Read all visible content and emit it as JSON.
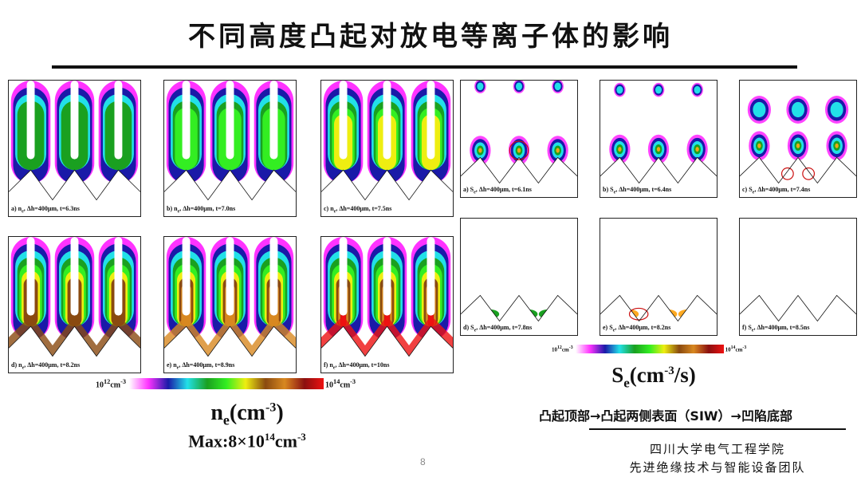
{
  "title": "不同高度凸起对放电等离子体的影响",
  "colormap": [
    "#ffffff",
    "#ff33ff",
    "#1a1aa8",
    "#22e0e8",
    "#1aa020",
    "#33ee22",
    "#eeee11",
    "#8a4a10",
    "#d88820",
    "#8b1010",
    "#ee1111"
  ],
  "ne_panels": [
    {
      "prefix": "a) n",
      "sub": "e",
      "suffix": ", Δh=400μm, t=6.3ns"
    },
    {
      "prefix": "b) n",
      "sub": "e",
      "suffix": ", Δh=400μm, t=7.0ns"
    },
    {
      "prefix": "c) n",
      "sub": "e",
      "suffix": ", Δh=400μm, t=7.5ns"
    },
    {
      "prefix": "d) n",
      "sub": "e",
      "suffix": ", Δh=400μm, t=8.2ns"
    },
    {
      "prefix": "e) n",
      "sub": "e",
      "suffix": ", Δh=400μm, t=8.9ns"
    },
    {
      "prefix": "f) n",
      "sub": "e",
      "suffix": ", Δh=400μm, t=10ns"
    }
  ],
  "se_panels": [
    {
      "prefix": "a) S",
      "sub": "e",
      "suffix": ", Δh=400μm, t=6.1ns"
    },
    {
      "prefix": "b) S",
      "sub": "e",
      "suffix": ", Δh=400μm, t=6.4ns"
    },
    {
      "prefix": "c) S",
      "sub": "e",
      "suffix": ", Δh=400μm, t=7.4ns"
    },
    {
      "prefix": "d) S",
      "sub": "e",
      "suffix": ", Δh=400μm, t=7.8ns"
    },
    {
      "prefix": "e) S",
      "sub": "e",
      "suffix": ", Δh=400μm, t=8.2ns"
    },
    {
      "prefix": "f) S",
      "sub": "e",
      "suffix": ", Δh=400μm, t=8.5ns"
    }
  ],
  "ne_colorbar": {
    "min_base": "10",
    "min_exp": "12",
    "min_unit": "cm",
    "unit_exp": "-3",
    "max_base": "10",
    "max_exp": "14",
    "max_unit": "cm"
  },
  "se_colorbar": {
    "min_base": "10",
    "min_exp": "12",
    "min_unit": "cm",
    "unit_exp": "-3",
    "max_base": "10",
    "max_exp": "14",
    "max_unit": "cm"
  },
  "ne_label": {
    "main": "n",
    "sub": "e",
    "open": "(cm",
    "exp": "-3",
    "close": ")",
    "max_prefix": "Max:8×10",
    "max_exp": "14",
    "max_unit": "cm",
    "max_unit_exp": "-3"
  },
  "se_label": {
    "main": "S",
    "sub": "e",
    "open": "(cm",
    "exp": "-3",
    "close": "/s)"
  },
  "sequence": "凸起顶部→凸起两侧表面（SIW）→凹陷底部",
  "org_line1": "四川大学电气工程学院",
  "org_line2": "先进绝缘技术与智能设备团队",
  "page_number": "8"
}
